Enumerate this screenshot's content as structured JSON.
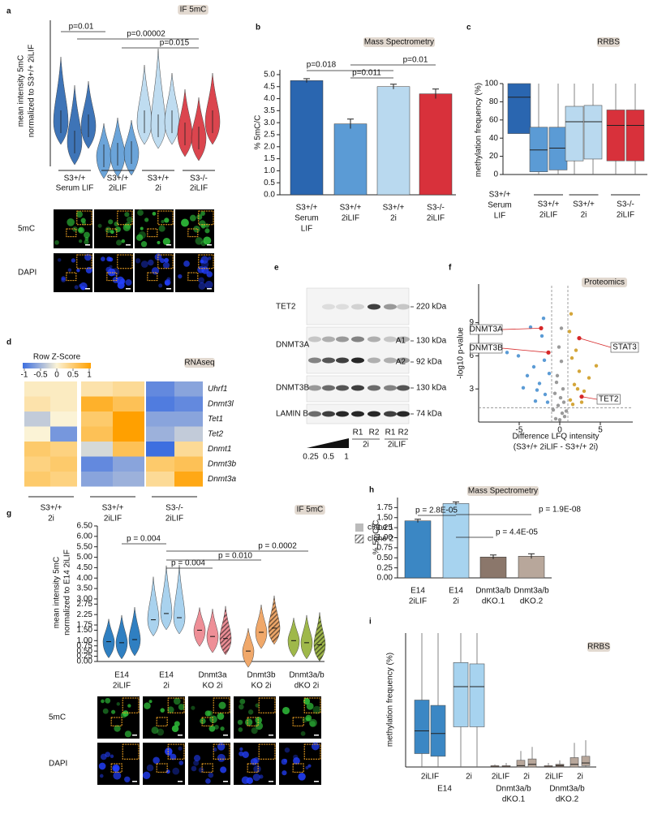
{
  "figure": {
    "a": {
      "letter": "a",
      "tag": "IF 5mC",
      "ylabel": [
        "mean intensity 5mC",
        "normalized to S3+/+ 2iLIF"
      ],
      "groups": [
        [
          "S3+/+",
          "Serum LIF"
        ],
        [
          "S3+/+",
          "2iLIF"
        ],
        [
          "S3+/+",
          "2i"
        ],
        [
          "S3-/-",
          "2iLIF"
        ]
      ],
      "colors": [
        "#2a66b0",
        "#5b9bd5",
        "#b9d9ef",
        "#d8313b"
      ],
      "pvalues": [
        "p=0.01",
        "p=0.00002",
        "p=0.015"
      ],
      "image_rows": [
        "5mC",
        "DAPI"
      ]
    },
    "b": {
      "letter": "b",
      "tag": "Mass Spectrometry",
      "ylabel": "% 5mC/C",
      "ylim": [
        0,
        5.2
      ],
      "yticks": [
        {
          "value": 0,
          "label": "0.0"
        },
        0.5,
        {
          "value": 1,
          "label": "1.0"
        },
        1.5,
        {
          "value": 2,
          "label": "2.0"
        },
        2.5,
        {
          "value": 3,
          "label": "3.0"
        },
        3.5,
        {
          "value": 4,
          "label": "4.0"
        },
        4.5,
        {
          "value": 5,
          "label": "5.0"
        }
      ],
      "categories": [
        [
          "S3+/+",
          "Serum",
          "LIF"
        ],
        [
          "S3+/+",
          "2iLIF"
        ],
        [
          "S3+/+",
          "2i"
        ],
        [
          "S3-/-",
          "2iLIF"
        ]
      ],
      "values": [
        4.75,
        2.95,
        4.5,
        4.2
      ],
      "errors": [
        0.08,
        0.2,
        0.1,
        0.2
      ],
      "colors": [
        "#2a66b0",
        "#5b9bd5",
        "#b9d9ef",
        "#d8313b"
      ],
      "pvalues": [
        "p=0.018",
        "p=0.011",
        "p=0.01"
      ]
    },
    "c": {
      "letter": "c",
      "tag": "RRBS",
      "ylabel": "methylation frequency (%)",
      "ylim": [
        0,
        100
      ],
      "yticks": [
        0,
        20,
        40,
        60,
        80,
        100
      ],
      "categories": [
        [
          "S3+/+",
          "Serum",
          "LIF"
        ],
        [
          "S3+/+",
          "2iLIF"
        ],
        [
          "S3+/+",
          "2i"
        ],
        [
          "S3-/-",
          "2iLIF"
        ]
      ],
      "colors": [
        "#2a66b0",
        "#5b9bd5",
        "#b9d9ef",
        "#d8313b"
      ],
      "boxes": [
        [
          {
            "min": 45,
            "q1": 45,
            "median": 85,
            "q3": 100,
            "max": 100
          }
        ],
        [
          {
            "min": 0,
            "q1": 3,
            "median": 27,
            "q3": 52,
            "max": 100
          },
          {
            "min": 0,
            "q1": 5,
            "median": 29,
            "q3": 52,
            "max": 100
          }
        ],
        [
          {
            "min": 0,
            "q1": 15,
            "median": 58,
            "q3": 75,
            "max": 100
          },
          {
            "min": 0,
            "q1": 17,
            "median": 58,
            "q3": 76,
            "max": 100
          }
        ],
        [
          {
            "min": 0,
            "q1": 15,
            "median": 54,
            "q3": 71,
            "max": 100
          },
          {
            "min": 0,
            "q1": 15,
            "median": 54,
            "q3": 71,
            "max": 100
          }
        ]
      ]
    },
    "d": {
      "letter": "d",
      "tag": "RNAseq",
      "legend_title": "Row Z-Score",
      "legend_ticks": [
        -1,
        -0.5,
        0,
        0.5,
        1
      ],
      "colors": {
        "low": "#3d6fe0",
        "mid": "#fbf3d6",
        "high": "#ffa000"
      },
      "genes": [
        "Uhrf1",
        "Dnmt3l",
        "Tet1",
        "Tet2",
        "Dnmt1",
        "Dnmt3b",
        "Dnmt3a"
      ],
      "groups": [
        [
          "S3+/+",
          "2i"
        ],
        [
          "S3+/+",
          "2iLIF"
        ],
        [
          "S3-/-",
          "2iLIF"
        ]
      ],
      "zscores": [
        [
          0.1,
          0.1,
          0.2,
          0.3,
          -0.8,
          -0.6
        ],
        [
          0.2,
          0.1,
          0.8,
          0.6,
          -0.9,
          -0.8
        ],
        [
          -0.3,
          0.0,
          0.5,
          1.0,
          -0.6,
          -0.6
        ],
        [
          0.0,
          -0.7,
          0.6,
          1.0,
          -0.5,
          -0.3
        ],
        [
          0.5,
          0.4,
          -0.2,
          0.6,
          -1.0,
          0.3
        ],
        [
          0.4,
          0.5,
          -0.8,
          -0.6,
          0.5,
          0.6
        ],
        [
          0.5,
          0.4,
          -0.6,
          -0.5,
          0.3,
          0.9
        ]
      ]
    },
    "e": {
      "letter": "e",
      "proteins": [
        "TET2",
        "DNMT3A",
        "DNMT3B",
        "LAMIN B"
      ],
      "sizes": [
        "220 kDa",
        "130 kDa",
        "92 kDa",
        "130 kDa",
        "74 kDa"
      ],
      "isoforms": [
        "A1",
        "A2"
      ],
      "lanes": [
        "R1",
        "R2",
        "R1",
        "R2"
      ],
      "conditions": [
        "2i",
        "2iLIF"
      ],
      "titration": [
        "0.25",
        "0.5",
        "1"
      ]
    },
    "f": {
      "letter": "f",
      "tag": "Proteomics",
      "xlabel": [
        "Difference LFQ intensity",
        "(S3+/+ 2iLIF - S3+/+ 2i)"
      ],
      "ylabel": "-log10 p-value",
      "xlim": [
        -10,
        9
      ],
      "ylim": [
        0,
        12.5
      ],
      "xticks": [
        -5,
        0,
        5
      ],
      "yticks": [
        3,
        6,
        9
      ],
      "thresholds": {
        "x": [
          -1,
          1
        ],
        "y": 1.3
      },
      "points": [
        {
          "color": "#9a9a9a",
          "x": [
            -0.5,
            0.3,
            -0.2,
            0.1,
            0.6,
            -0.8,
            0.4,
            -0.3,
            0.2,
            0.0,
            -0.1,
            0.5,
            -0.6,
            0.8,
            -0.4,
            0.2
          ],
          "y": [
            0.3,
            0.8,
            1.5,
            2.2,
            0.5,
            1.1,
            3.0,
            4.2,
            5.5,
            0.2,
            6.8,
            1.8,
            2.6,
            1.0,
            3.6,
            8.5
          ]
        },
        {
          "color": "#5b9bd5",
          "x": [
            -2.5,
            -3.2,
            -4.0,
            -1.8,
            -2.2,
            -5.1,
            -3.6,
            -1.5,
            -2.8,
            -4.5,
            -6.5,
            -1.3,
            -2.0,
            -3.0,
            -1.9
          ],
          "y": [
            3.5,
            5.0,
            4.2,
            2.5,
            7.8,
            6.0,
            8.6,
            1.8,
            2.9,
            3.1,
            6.3,
            4.4,
            9.4,
            1.9,
            5.6
          ]
        },
        {
          "color": "#d4a63a",
          "x": [
            1.3,
            1.8,
            2.4,
            1.5,
            3.0,
            2.0,
            1.2,
            2.7,
            3.6,
            1.6,
            1.4,
            2.2,
            4.5
          ],
          "y": [
            2.0,
            3.4,
            4.6,
            5.8,
            2.8,
            6.5,
            8.2,
            1.8,
            4.0,
            1.6,
            9.8,
            3.0,
            5.1
          ]
        }
      ],
      "highlight_color": "#d62728",
      "highlights": [
        {
          "label": "DNMT3A",
          "x": -2.3,
          "y": 8.5
        },
        {
          "label": "DNMT3B",
          "x": -1.4,
          "y": 6.3
        },
        {
          "label": "STAT3",
          "x": 2.4,
          "y": 7.6
        },
        {
          "label": "TET2",
          "x": 2.7,
          "y": 2.3
        }
      ]
    },
    "g": {
      "letter": "g",
      "tag": "IF 5mC",
      "ylabel": [
        "mean intensity 5mC",
        "normalized to E14 2iLIF"
      ],
      "ylim": [
        0,
        6.5
      ],
      "yticks": [
        {
          "value": 0,
          "label": "0.00"
        },
        0.25,
        {
          "value": 0.5,
          "label": "0.50"
        },
        0.75,
        {
          "value": 1,
          "label": "1.00"
        },
        {
          "value": 1.5,
          "label": "1.50"
        },
        1.75,
        2.25,
        2.75,
        {
          "value": 3,
          "label": "3.00"
        },
        {
          "value": 3.5,
          "label": "3.50"
        },
        {
          "value": 4,
          "label": "4.00"
        },
        {
          "value": 4.5,
          "label": "4.50"
        },
        {
          "value": 5,
          "label": "5.00"
        },
        {
          "value": 5.5,
          "label": "5.50"
        },
        {
          "value": 6,
          "label": "6.00"
        },
        {
          "value": 6.5,
          "label": "6.50"
        }
      ],
      "categories": [
        [
          "E14",
          "2iLIF"
        ],
        [
          "E14",
          "2i"
        ],
        [
          "Dnmt3a",
          "KO 2i"
        ],
        [
          "Dnmt3b",
          "KO 2i"
        ],
        [
          "Dnmt3a/b",
          "dKO 2i"
        ]
      ],
      "colors": [
        "#2f7fc1",
        "#a9d2ee",
        "#ee8f97",
        "#f0a86a",
        "#9fb84a"
      ],
      "medians": [
        [
          0.95,
          0.9,
          1.05
        ],
        [
          2.0,
          2.3,
          2.1
        ],
        [
          1.5,
          1.2,
          1.1
        ],
        [
          0.5,
          1.4,
          1.6
        ],
        [
          1.0,
          0.9,
          0.8
        ]
      ],
      "legend": [
        "clone 1",
        "clone 2"
      ],
      "legend_color": "#bbbbbb",
      "pvalues": [
        "p = 0.004",
        "p = 0.004",
        "p = 0.010",
        "p = 0.0002"
      ],
      "image_rows": [
        "5mC",
        "DAPI"
      ]
    },
    "h": {
      "letter": "h",
      "tag": "Mass Spectrometry",
      "ylabel": "% 5mC/C",
      "ylim": [
        0,
        2
      ],
      "yticks": [
        {
          "value": 0,
          "label": "0.00"
        },
        0.25,
        {
          "value": 0.5,
          "label": "0.50"
        },
        0.75,
        {
          "value": 1,
          "label": "1.00"
        },
        1.25,
        {
          "value": 1.5,
          "label": "1.50"
        },
        1.75
      ],
      "categories": [
        [
          "E14",
          "2iLIF"
        ],
        [
          "E14",
          "2i"
        ],
        [
          "Dnmt3a/b",
          "dKO.1"
        ],
        [
          "Dnmt3a/b",
          "dKO.2"
        ]
      ],
      "values": [
        1.42,
        1.85,
        0.52,
        0.54
      ],
      "errors": [
        0.04,
        0.04,
        0.05,
        0.06
      ],
      "colors": [
        "#3b87c4",
        "#a7d3ef",
        "#8b776b",
        "#b8a79b"
      ],
      "pvalues": [
        "p = 2.8E-05",
        "p = 4.4E-05",
        "p = 1.9E-08"
      ]
    },
    "i": {
      "letter": "i",
      "tag": "RRBS",
      "ylabel": "methylation frequency (%)",
      "ylim": [
        0,
        100
      ],
      "conditions": [
        "2iLIF",
        "2i",
        "2iLIF",
        "2i",
        "2iLIF",
        "2i"
      ],
      "groups": [
        [
          "E14"
        ],
        [
          "Dnmt3a/b",
          "dKO.1"
        ],
        [
          "Dnmt3a/b",
          "dKO.2"
        ]
      ],
      "colors": [
        "#3b87c4",
        "#3b87c4",
        "#a7d3ef",
        "#a7d3ef",
        "#8b776b",
        "#8b776b",
        "#b8a79b",
        "#b8a79b",
        "#8b776b",
        "#8b776b",
        "#b8a79b",
        "#b8a79b"
      ],
      "boxes": [
        {
          "min": 0,
          "q1": 10,
          "median": 27,
          "q3": 50,
          "max": 100
        },
        {
          "min": 0,
          "q1": 8,
          "median": 25,
          "q3": 46,
          "max": 100
        },
        {
          "min": 0,
          "q1": 30,
          "median": 60,
          "q3": 78,
          "max": 100
        },
        {
          "min": 0,
          "q1": 30,
          "median": 60,
          "q3": 77,
          "max": 100
        },
        {
          "min": 0,
          "q1": 0,
          "median": 0,
          "q3": 1,
          "max": 2
        },
        {
          "min": 0,
          "q1": 0,
          "median": 0,
          "q3": 1,
          "max": 3
        },
        {
          "min": 0,
          "q1": 0,
          "median": 1,
          "q3": 5,
          "max": 12
        },
        {
          "min": 0,
          "q1": 0,
          "median": 2,
          "q3": 6,
          "max": 15
        },
        {
          "min": 0,
          "q1": 0,
          "median": 0,
          "q3": 1,
          "max": 3
        },
        {
          "min": 0,
          "q1": 0,
          "median": 1,
          "q3": 2,
          "max": 5
        },
        {
          "min": 0,
          "q1": 0,
          "median": 2,
          "q3": 7,
          "max": 18
        },
        {
          "min": 0,
          "q1": 1,
          "median": 3,
          "q3": 8,
          "max": 20
        }
      ]
    }
  }
}
